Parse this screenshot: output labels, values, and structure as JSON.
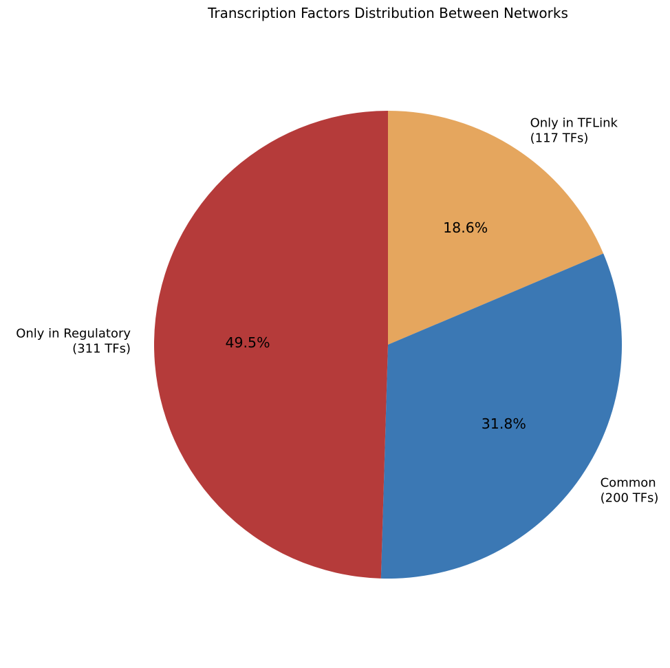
{
  "chart_data": {
    "type": "pie",
    "title": "Transcription Factors Distribution Between Networks",
    "start_angle_deg": 90,
    "direction": "clockwise",
    "slices": [
      {
        "label_line1": "Only in TFLink",
        "label_line2": "(117 TFs)",
        "count": 117,
        "percent_label": "18.6%",
        "color": "#e5a65e"
      },
      {
        "label_line1": "Common",
        "label_line2": "(200 TFs)",
        "count": 200,
        "percent_label": "31.8%",
        "color": "#3b78b4"
      },
      {
        "label_line1": "Only in Regulatory",
        "label_line2": "(311 TFs)",
        "count": 311,
        "percent_label": "49.5%",
        "color": "#b53b3a"
      }
    ]
  }
}
